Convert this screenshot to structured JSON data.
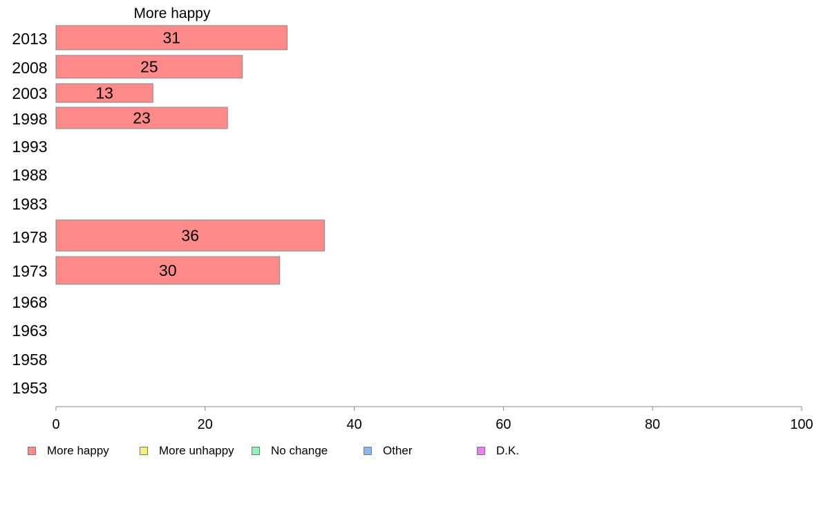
{
  "chart_data": {
    "type": "bar",
    "orientation": "horizontal",
    "title": "More happy",
    "categories": [
      "2013",
      "2008",
      "2003",
      "1998",
      "1993",
      "1988",
      "1983",
      "1978",
      "1973",
      "1968",
      "1963",
      "1958",
      "1953"
    ],
    "series": [
      {
        "name": "More happy",
        "color": "#ff8a8a",
        "values": [
          31,
          25,
          13,
          23,
          null,
          null,
          null,
          36,
          30,
          null,
          null,
          null,
          null
        ]
      }
    ],
    "data_labels": [
      "31",
      "25",
      "13",
      "23",
      "",
      "",
      "",
      "36",
      "30",
      "",
      "",
      "",
      ""
    ],
    "xlim": [
      0,
      100
    ],
    "x_ticks": [
      "0",
      "20",
      "40",
      "60",
      "80",
      "100"
    ],
    "grid": false,
    "legend_position": "bottom",
    "legend": [
      {
        "label": "More happy",
        "color": "#ff8a8a"
      },
      {
        "label": "More unhappy",
        "color": "#f0f07a"
      },
      {
        "label": "No change",
        "color": "#8af5b4"
      },
      {
        "label": "Other",
        "color": "#8ab8f5"
      },
      {
        "label": "D.K.",
        "color": "#ee7ef0"
      }
    ]
  }
}
